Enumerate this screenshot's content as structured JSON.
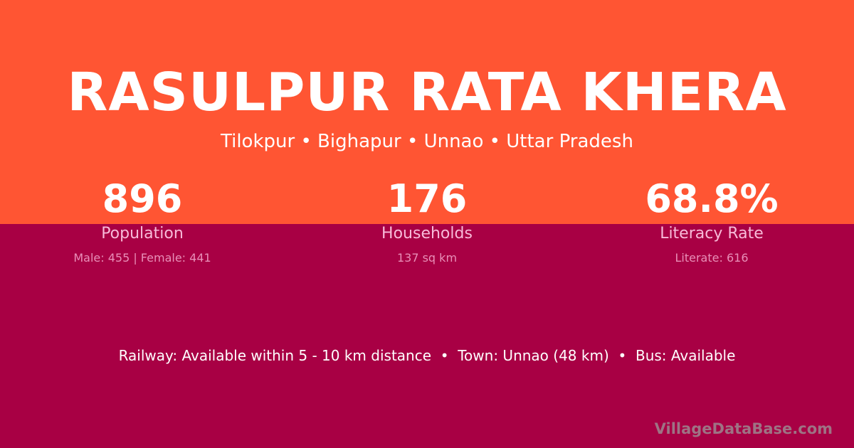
{
  "title": "RASULPUR RATA KHERA",
  "subtitle": "Tilokpur • Bighapur • Unnao • Uttar Pradesh",
  "colors": {
    "top_background": "#FF5533",
    "bottom_background": "#A80044"
  },
  "stats": [
    {
      "value": "896",
      "label": "Population",
      "detail": "Male: 455 | Female: 441"
    },
    {
      "value": "176",
      "label": "Households",
      "detail": "137 sq km"
    },
    {
      "value": "68.8%",
      "label": "Literacy Rate",
      "detail": "Literate: 616"
    }
  ],
  "footer": "Railway: Available within 5 - 10 km distance  •  Town: Unnao (48 km)  •  Bus: Available",
  "brand": "VillageDataBase.com"
}
